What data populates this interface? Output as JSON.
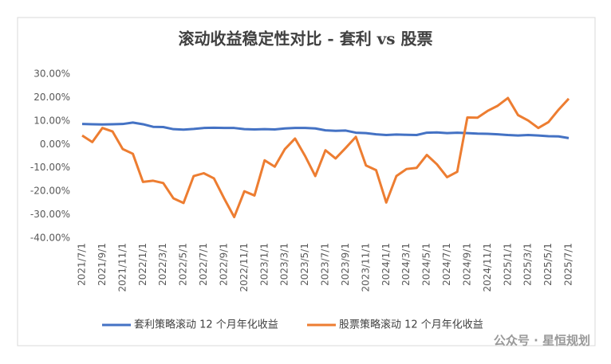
{
  "chart_data": {
    "type": "line",
    "title": "滚动收益稳定性对比 - 套利 vs 股票",
    "watermark": "公众号 · 星恒规划",
    "categories": [
      "2021/7/1",
      null,
      "2021/9/1",
      null,
      "2021/11/1",
      null,
      "2022/1/1",
      null,
      "2022/3/1",
      null,
      "2022/5/1",
      null,
      "2022/7/1",
      null,
      "2022/9/1",
      null,
      "2022/11/1",
      null,
      "2023/1/1",
      null,
      "2023/3/1",
      null,
      "2023/5/1",
      null,
      "2023/7/1",
      null,
      "2023/9/1",
      null,
      "2023/11/1",
      null,
      "2024/1/1",
      null,
      "2024/3/1",
      null,
      "2024/5/1",
      null,
      "2024/7/1",
      null,
      "2024/9/1",
      null,
      "2024/11/1",
      null,
      "2025/1/1",
      null,
      "2025/3/1",
      null,
      "2025/5/1",
      null,
      "2025/7/1"
    ],
    "series": [
      {
        "name": "套利策略滚动 12 个月年化收益",
        "color": "#4472c4",
        "values": [
          8.7,
          8.6,
          8.5,
          8.6,
          8.7,
          9.3,
          8.6,
          7.5,
          7.4,
          6.5,
          6.3,
          6.6,
          7.0,
          7.1,
          7.0,
          7.0,
          6.5,
          6.4,
          6.5,
          6.4,
          6.8,
          7.0,
          7.0,
          6.8,
          6.0,
          5.8,
          5.9,
          5.0,
          4.8,
          4.3,
          4.0,
          4.2,
          4.1,
          4.0,
          5.0,
          5.1,
          4.8,
          5.0,
          4.8,
          4.6,
          4.5,
          4.3,
          4.0,
          3.8,
          4.0,
          3.8,
          3.5,
          3.4,
          2.7
        ]
      },
      {
        "name": "股票策略滚动 12 个月年化收益",
        "color": "#ed7d31",
        "values": [
          3.8,
          1.0,
          7.0,
          5.5,
          -2.0,
          -4.0,
          -16,
          -15.5,
          -16.5,
          -23,
          -25,
          -13.5,
          -12.3,
          -14.5,
          -23,
          -31,
          -20,
          -21.8,
          -6.8,
          -9.5,
          -2,
          2.5,
          -5,
          -13.5,
          -2.5,
          -6,
          -1.5,
          3.2,
          -9,
          -11,
          -24.8,
          -13.5,
          -10.5,
          -10,
          -4.5,
          -8.5,
          -14,
          -11.7,
          11.5,
          11.4,
          14.3,
          16.5,
          19.8,
          12.5,
          10.2,
          7,
          9.5,
          14.8,
          19.5
        ]
      }
    ],
    "ylim": [
      -40,
      30
    ],
    "yticks": [
      {
        "value": -40,
        "label": "-40.00%"
      },
      {
        "value": -30,
        "label": "-30.00%"
      },
      {
        "value": -20,
        "label": "-20.00%"
      },
      {
        "value": -10,
        "label": "-10.00%"
      },
      {
        "value": 0,
        "label": "0.00%"
      },
      {
        "value": 10,
        "label": "10.00%"
      },
      {
        "value": 20,
        "label": "20.00%"
      },
      {
        "value": 30,
        "label": "30.00%"
      }
    ],
    "grid": false,
    "legend": "bottom"
  }
}
